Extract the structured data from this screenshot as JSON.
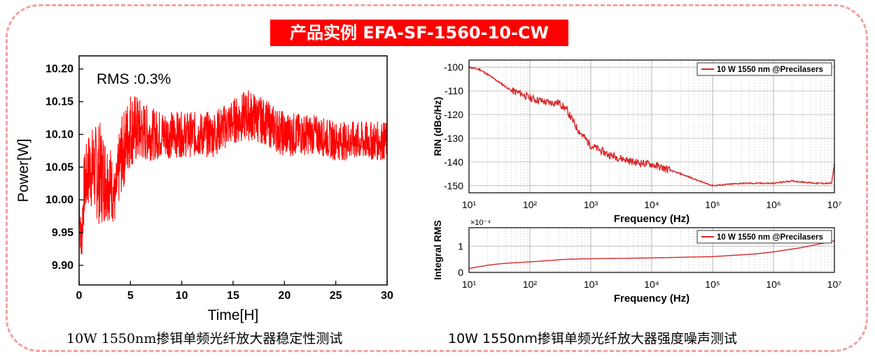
{
  "banner": "产品实例 EFA-SF-1560-10-CW",
  "captions": {
    "left": "10W 1550nm掺铒单频光纤放大器稳定性测试",
    "right": "10W 1550nm掺铒单频光纤放大器强度噪声测试"
  },
  "colors": {
    "series": "#ff0000",
    "rin_line": "#d62728",
    "frame": "#f4a0a0"
  },
  "chart_data": [
    {
      "type": "line",
      "xlabel": "Time[H]",
      "ylabel": "Power[W]",
      "xlim": [
        0,
        30
      ],
      "ylim": [
        9.87,
        10.22
      ],
      "xticks": [
        "0",
        "5",
        "10",
        "15",
        "20",
        "25",
        "30"
      ],
      "yticks": [
        "9.90",
        "9.95",
        "10.00",
        "10.05",
        "10.10",
        "10.15",
        "10.20"
      ],
      "annotation": "RMS :0.3%",
      "grid": false,
      "series": [
        {
          "x": [
            0,
            0.2,
            0.5,
            1,
            2,
            3,
            3.5,
            4,
            5,
            7,
            10,
            13,
            15,
            16.5,
            18,
            20,
            23,
            25,
            28,
            30
          ],
          "y": [
            10.0,
            9.93,
            10.02,
            10.05,
            10.04,
            10.03,
            10.0,
            10.06,
            10.11,
            10.1,
            10.1,
            10.1,
            10.12,
            10.13,
            10.12,
            10.1,
            10.1,
            10.09,
            10.09,
            10.09
          ],
          "noise_amplitude": [
            0.02,
            0.04,
            0.05,
            0.06,
            0.08,
            0.06,
            0.04,
            0.06,
            0.06,
            0.04,
            0.035,
            0.035,
            0.035,
            0.04,
            0.035,
            0.035,
            0.03,
            0.03,
            0.03,
            0.03
          ]
        }
      ]
    },
    {
      "type": "line",
      "xlabel": "Frequency (Hz)",
      "ylabel": "RIN (dBc/Hz)",
      "xscale": "log",
      "xlim": [
        10,
        10000000
      ],
      "ylim": [
        -153,
        -97
      ],
      "xticks": [
        "10",
        "100",
        "1000",
        "10000",
        "100000",
        "1000000",
        "10000000"
      ],
      "yticks": [
        "-100",
        "-110",
        "-120",
        "-130",
        "-140",
        "-150"
      ],
      "grid": true,
      "legend_position": "top-right",
      "series": [
        {
          "name": "10 W 1550 nm @Precilasers",
          "x": [
            10,
            15,
            20,
            30,
            50,
            70,
            100,
            200,
            300,
            400,
            600,
            1000,
            2000,
            5000,
            10000,
            30000,
            60000,
            100000,
            300000,
            1000000,
            2000000,
            5000000,
            9000000,
            10000000
          ],
          "y": [
            -100,
            -101,
            -103,
            -106,
            -110,
            -111,
            -113,
            -115,
            -115,
            -118,
            -126,
            -133,
            -137,
            -140,
            -141,
            -145,
            -148,
            -150,
            -149,
            -149,
            -148,
            -149,
            -149,
            -141
          ]
        }
      ]
    },
    {
      "type": "line",
      "xlabel": "Frequency (Hz)",
      "ylabel": "Integral RMS",
      "yunit": "×10⁻⁴",
      "xscale": "log",
      "xlim": [
        10,
        10000000
      ],
      "ylim": [
        0,
        1.7
      ],
      "xticks": [
        "10",
        "100",
        "1000",
        "10000",
        "100000",
        "1000000",
        "10000000"
      ],
      "yticks": [
        "0",
        "1"
      ],
      "grid": true,
      "legend_position": "top-right",
      "series": [
        {
          "name": "10 W 1550 nm @Precilasers",
          "x": [
            10,
            15,
            20,
            30,
            50,
            100,
            200,
            400,
            1000,
            10000,
            100000,
            500000,
            1000000,
            3000000,
            10000000
          ],
          "y": [
            0.15,
            0.22,
            0.27,
            0.32,
            0.36,
            0.4,
            0.45,
            0.5,
            0.52,
            0.55,
            0.6,
            0.7,
            0.78,
            0.95,
            1.2
          ]
        }
      ]
    }
  ]
}
